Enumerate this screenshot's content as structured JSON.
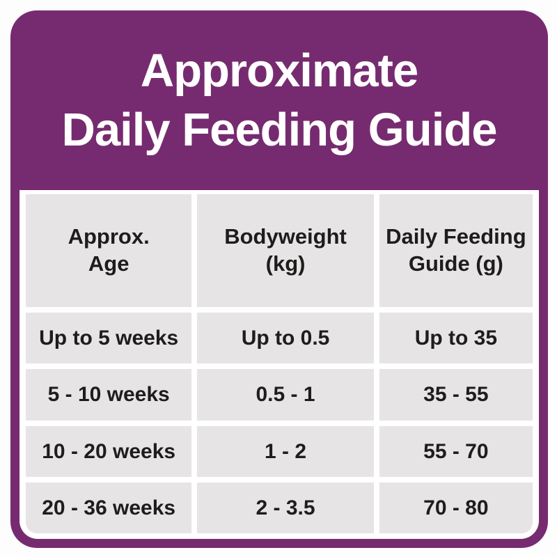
{
  "title": {
    "line1": "Approximate",
    "line2": "Daily Feeding Guide"
  },
  "table": {
    "headers": [
      {
        "line1": "Approx.",
        "line2": "Age"
      },
      {
        "line1": "Bodyweight",
        "line2": "(kg)"
      },
      {
        "line1": "Daily Feeding",
        "line2": "Guide (g)"
      }
    ],
    "rows": [
      [
        "Up to 5 weeks",
        "Up to 0.5",
        "Up to 35"
      ],
      [
        "5 - 10 weeks",
        "0.5 - 1",
        "35 - 55"
      ],
      [
        "10 - 20 weeks",
        "1 - 2",
        "55 - 70"
      ],
      [
        "20 - 36 weeks",
        "2 - 3.5",
        "70 - 80"
      ]
    ]
  },
  "chart_data": {
    "type": "table",
    "title": "Approximate Daily Feeding Guide",
    "columns": [
      "Approx. Age",
      "Bodyweight (kg)",
      "Daily Feeding Guide (g)"
    ],
    "rows": [
      [
        "Up to 5 weeks",
        "Up to 0.5",
        "Up to 35"
      ],
      [
        "5 - 10 weeks",
        "0.5 - 1",
        "35 - 55"
      ],
      [
        "10 - 20 weeks",
        "1 - 2",
        "55 - 70"
      ],
      [
        "20 - 36 weeks",
        "2 - 3.5",
        "70 - 80"
      ]
    ]
  },
  "colors": {
    "purple": "#762b70",
    "cell_gray": "#e6e4e5",
    "text": "#1d1d1b",
    "background": "#fdfdfd",
    "gap_white": "#ffffff"
  }
}
